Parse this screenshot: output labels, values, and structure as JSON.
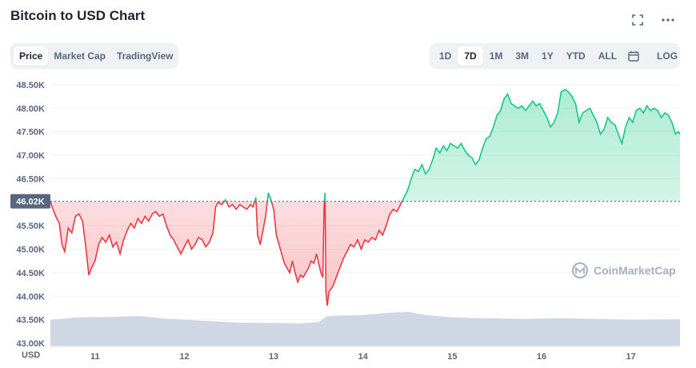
{
  "header": {
    "title": "Bitcoin to USD Chart",
    "icons": [
      "expand-icon",
      "more-icon"
    ]
  },
  "tabs": [
    {
      "label": "Price",
      "active": true
    },
    {
      "label": "Market Cap",
      "active": false
    },
    {
      "label": "TradingView",
      "active": false
    }
  ],
  "ranges": [
    {
      "label": "1D",
      "active": false
    },
    {
      "label": "7D",
      "active": true
    },
    {
      "label": "1M",
      "active": false
    },
    {
      "label": "3M",
      "active": false
    },
    {
      "label": "1Y",
      "active": false
    },
    {
      "label": "YTD",
      "active": false
    },
    {
      "label": "ALL",
      "active": false
    }
  ],
  "calendar_icon": "calendar-icon",
  "log_label": "LOG",
  "watermark": "CoinMarketCap",
  "colors": {
    "up": "#16c784",
    "down": "#ea3943",
    "volume": "#cfd6e4",
    "reference": "#58667e"
  },
  "chart_data": {
    "type": "area",
    "x_axis": {
      "ticks": [
        "11",
        "12",
        "13",
        "14",
        "15",
        "16",
        "17"
      ],
      "tick_values": [
        11,
        12,
        13,
        14,
        15,
        16,
        17
      ],
      "range": [
        10.5,
        17.55
      ],
      "unit_label": "USD"
    },
    "y_axis": {
      "ticks": [
        "48.50K",
        "48.00K",
        "47.50K",
        "47.00K",
        "46.50K",
        "46.00K",
        "45.50K",
        "45.00K",
        "44.50K",
        "44.00K",
        "43.50K",
        "43.00K"
      ],
      "tick_values": [
        48500,
        48000,
        47500,
        47000,
        46500,
        46000,
        45500,
        45000,
        44500,
        44000,
        43500,
        43000
      ],
      "range": [
        42950,
        48600
      ]
    },
    "reference": {
      "label": "46.02K",
      "value": 46020
    },
    "grid": true,
    "series": [
      {
        "points": [
          [
            10.5,
            46020
          ],
          [
            10.52,
            45900
          ],
          [
            10.56,
            45700
          ],
          [
            10.6,
            45550
          ],
          [
            10.63,
            45100
          ],
          [
            10.66,
            44950
          ],
          [
            10.7,
            45450
          ],
          [
            10.74,
            45350
          ],
          [
            10.78,
            45700
          ],
          [
            10.82,
            45750
          ],
          [
            10.86,
            45600
          ],
          [
            10.89,
            45150
          ],
          [
            10.91,
            44800
          ],
          [
            10.93,
            44450
          ],
          [
            10.96,
            44600
          ],
          [
            11.0,
            44750
          ],
          [
            11.04,
            45100
          ],
          [
            11.08,
            45250
          ],
          [
            11.12,
            45150
          ],
          [
            11.16,
            45300
          ],
          [
            11.2,
            45050
          ],
          [
            11.24,
            45150
          ],
          [
            11.28,
            44900
          ],
          [
            11.32,
            45200
          ],
          [
            11.36,
            45400
          ],
          [
            11.4,
            45550
          ],
          [
            11.44,
            45450
          ],
          [
            11.48,
            45650
          ],
          [
            11.52,
            45550
          ],
          [
            11.56,
            45700
          ],
          [
            11.6,
            45600
          ],
          [
            11.64,
            45750
          ],
          [
            11.68,
            45800
          ],
          [
            11.72,
            45700
          ],
          [
            11.76,
            45750
          ],
          [
            11.8,
            45500
          ],
          [
            11.84,
            45300
          ],
          [
            11.88,
            45200
          ],
          [
            11.92,
            45050
          ],
          [
            11.96,
            44900
          ],
          [
            12.0,
            45050
          ],
          [
            12.04,
            45200
          ],
          [
            12.08,
            45000
          ],
          [
            12.12,
            45100
          ],
          [
            12.16,
            45250
          ],
          [
            12.2,
            45200
          ],
          [
            12.24,
            45050
          ],
          [
            12.28,
            45150
          ],
          [
            12.32,
            45350
          ],
          [
            12.35,
            45900
          ],
          [
            12.38,
            46000
          ],
          [
            12.42,
            45950
          ],
          [
            12.46,
            46050
          ],
          [
            12.5,
            45900
          ],
          [
            12.54,
            45950
          ],
          [
            12.58,
            45850
          ],
          [
            12.62,
            45950
          ],
          [
            12.66,
            45900
          ],
          [
            12.7,
            45850
          ],
          [
            12.74,
            45950
          ],
          [
            12.77,
            45900
          ],
          [
            12.8,
            46100
          ],
          [
            12.82,
            45300
          ],
          [
            12.85,
            45100
          ],
          [
            12.88,
            45400
          ],
          [
            12.91,
            45700
          ],
          [
            12.94,
            46200
          ],
          [
            12.97,
            46050
          ],
          [
            13.0,
            45850
          ],
          [
            13.03,
            45300
          ],
          [
            13.06,
            45100
          ],
          [
            13.09,
            44900
          ],
          [
            13.12,
            44700
          ],
          [
            13.15,
            44600
          ],
          [
            13.18,
            44500
          ],
          [
            13.21,
            44750
          ],
          [
            13.24,
            44500
          ],
          [
            13.27,
            44300
          ],
          [
            13.3,
            44450
          ],
          [
            13.33,
            44400
          ],
          [
            13.36,
            44500
          ],
          [
            13.39,
            44600
          ],
          [
            13.42,
            44750
          ],
          [
            13.45,
            44700
          ],
          [
            13.48,
            44900
          ],
          [
            13.51,
            44650
          ],
          [
            13.53,
            44500
          ],
          [
            13.55,
            44400
          ],
          [
            13.565,
            45900
          ],
          [
            13.575,
            46200
          ],
          [
            13.585,
            44100
          ],
          [
            13.6,
            43800
          ],
          [
            13.62,
            44100
          ],
          [
            13.66,
            44200
          ],
          [
            13.7,
            44400
          ],
          [
            13.74,
            44600
          ],
          [
            13.78,
            44800
          ],
          [
            13.82,
            44950
          ],
          [
            13.86,
            45100
          ],
          [
            13.9,
            45050
          ],
          [
            13.94,
            45200
          ],
          [
            13.98,
            45000
          ],
          [
            14.02,
            45200
          ],
          [
            14.06,
            45150
          ],
          [
            14.1,
            45250
          ],
          [
            14.14,
            45200
          ],
          [
            14.18,
            45400
          ],
          [
            14.22,
            45300
          ],
          [
            14.26,
            45500
          ],
          [
            14.3,
            45750
          ],
          [
            14.34,
            45850
          ],
          [
            14.38,
            45800
          ],
          [
            14.42,
            45950
          ],
          [
            14.46,
            46100
          ],
          [
            14.5,
            46250
          ],
          [
            14.54,
            46500
          ],
          [
            14.58,
            46700
          ],
          [
            14.62,
            46650
          ],
          [
            14.66,
            46800
          ],
          [
            14.7,
            46600
          ],
          [
            14.74,
            46700
          ],
          [
            14.78,
            46900
          ],
          [
            14.82,
            47150
          ],
          [
            14.86,
            47050
          ],
          [
            14.9,
            47200
          ],
          [
            14.94,
            47100
          ],
          [
            14.98,
            47250
          ],
          [
            15.02,
            47200
          ],
          [
            15.06,
            47150
          ],
          [
            15.1,
            47250
          ],
          [
            15.14,
            47100
          ],
          [
            15.18,
            47000
          ],
          [
            15.22,
            46950
          ],
          [
            15.26,
            46800
          ],
          [
            15.3,
            46900
          ],
          [
            15.34,
            47150
          ],
          [
            15.38,
            47350
          ],
          [
            15.42,
            47400
          ],
          [
            15.46,
            47600
          ],
          [
            15.5,
            47850
          ],
          [
            15.54,
            47950
          ],
          [
            15.58,
            48200
          ],
          [
            15.62,
            48300
          ],
          [
            15.66,
            48100
          ],
          [
            15.7,
            48050
          ],
          [
            15.74,
            48000
          ],
          [
            15.78,
            48050
          ],
          [
            15.82,
            47950
          ],
          [
            15.86,
            48050
          ],
          [
            15.9,
            48150
          ],
          [
            15.94,
            48050
          ],
          [
            15.98,
            48100
          ],
          [
            16.02,
            47950
          ],
          [
            16.06,
            47800
          ],
          [
            16.1,
            47600
          ],
          [
            16.14,
            47700
          ],
          [
            16.18,
            47900
          ],
          [
            16.22,
            48350
          ],
          [
            16.26,
            48400
          ],
          [
            16.3,
            48350
          ],
          [
            16.34,
            48250
          ],
          [
            16.38,
            48100
          ],
          [
            16.42,
            47700
          ],
          [
            16.46,
            47900
          ],
          [
            16.5,
            47950
          ],
          [
            16.54,
            48000
          ],
          [
            16.58,
            47850
          ],
          [
            16.62,
            47700
          ],
          [
            16.66,
            47450
          ],
          [
            16.7,
            47550
          ],
          [
            16.74,
            47800
          ],
          [
            16.78,
            47700
          ],
          [
            16.82,
            47650
          ],
          [
            16.86,
            47450
          ],
          [
            16.9,
            47250
          ],
          [
            16.94,
            47600
          ],
          [
            16.98,
            47800
          ],
          [
            17.02,
            47700
          ],
          [
            17.06,
            47950
          ],
          [
            17.1,
            48000
          ],
          [
            17.14,
            47900
          ],
          [
            17.18,
            48050
          ],
          [
            17.22,
            47950
          ],
          [
            17.26,
            48000
          ],
          [
            17.3,
            47950
          ],
          [
            17.34,
            47800
          ],
          [
            17.38,
            47900
          ],
          [
            17.42,
            47850
          ],
          [
            17.46,
            47700
          ],
          [
            17.5,
            47450
          ],
          [
            17.53,
            47500
          ],
          [
            17.55,
            47450
          ]
        ]
      }
    ],
    "volume": {
      "points": [
        [
          10.5,
          43500
        ],
        [
          10.8,
          43550
        ],
        [
          11.2,
          43560
        ],
        [
          11.5,
          43580
        ],
        [
          11.8,
          43520
        ],
        [
          12.2,
          43480
        ],
        [
          12.6,
          43440
        ],
        [
          13.0,
          43430
        ],
        [
          13.3,
          43420
        ],
        [
          13.5,
          43450
        ],
        [
          13.6,
          43580
        ],
        [
          14.0,
          43600
        ],
        [
          14.3,
          43650
        ],
        [
          14.5,
          43670
        ],
        [
          14.7,
          43600
        ],
        [
          15.0,
          43550
        ],
        [
          15.4,
          43530
        ],
        [
          15.8,
          43520
        ],
        [
          16.2,
          43530
        ],
        [
          16.6,
          43520
        ],
        [
          17.0,
          43500
        ],
        [
          17.55,
          43510
        ]
      ]
    }
  }
}
